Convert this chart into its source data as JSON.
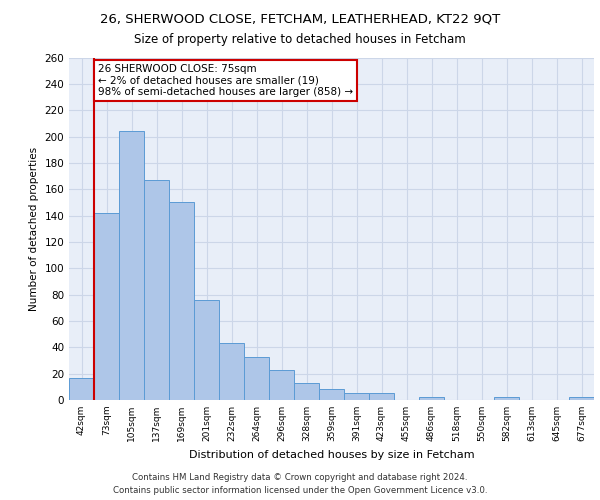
{
  "title1": "26, SHERWOOD CLOSE, FETCHAM, LEATHERHEAD, KT22 9QT",
  "title2": "Size of property relative to detached houses in Fetcham",
  "xlabel": "Distribution of detached houses by size in Fetcham",
  "ylabel": "Number of detached properties",
  "categories": [
    "42sqm",
    "73sqm",
    "105sqm",
    "137sqm",
    "169sqm",
    "201sqm",
    "232sqm",
    "264sqm",
    "296sqm",
    "328sqm",
    "359sqm",
    "391sqm",
    "423sqm",
    "455sqm",
    "486sqm",
    "518sqm",
    "550sqm",
    "582sqm",
    "613sqm",
    "645sqm",
    "677sqm"
  ],
  "values": [
    17,
    142,
    204,
    167,
    150,
    76,
    43,
    33,
    23,
    13,
    8,
    5,
    5,
    0,
    2,
    0,
    0,
    2,
    0,
    0,
    2
  ],
  "bar_color": "#aec6e8",
  "bar_edge_color": "#5b9bd5",
  "vline_color": "#cc0000",
  "vline_x_index": 1,
  "annotation_text": "26 SHERWOOD CLOSE: 75sqm\n← 2% of detached houses are smaller (19)\n98% of semi-detached houses are larger (858) →",
  "annotation_box_color": "#ffffff",
  "annotation_box_edge": "#cc0000",
  "grid_color": "#ccd6e8",
  "background_color": "#e8eef8",
  "ylim": [
    0,
    260
  ],
  "yticks": [
    0,
    20,
    40,
    60,
    80,
    100,
    120,
    140,
    160,
    180,
    200,
    220,
    240,
    260
  ],
  "footer_line1": "Contains HM Land Registry data © Crown copyright and database right 2024.",
  "footer_line2": "Contains public sector information licensed under the Open Government Licence v3.0."
}
